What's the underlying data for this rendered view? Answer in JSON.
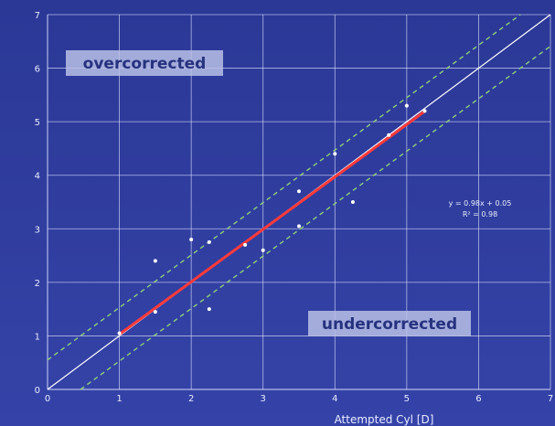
{
  "chart_data": {
    "type": "scatter",
    "title": "",
    "xlabel": "Attempted Cyl [D]",
    "ylabel": "",
    "xlim": [
      0,
      7
    ],
    "ylim": [
      0,
      7
    ],
    "grid": true,
    "x_ticks": [
      "0",
      "1",
      "2",
      "3",
      "4",
      "5",
      "6",
      "7"
    ],
    "y_ticks": [
      "0",
      "1",
      "2",
      "3",
      "4",
      "5",
      "6",
      "7"
    ],
    "points": [
      {
        "x": 1.0,
        "y": 1.05
      },
      {
        "x": 1.5,
        "y": 2.4
      },
      {
        "x": 1.5,
        "y": 1.45
      },
      {
        "x": 2.0,
        "y": 2.8
      },
      {
        "x": 2.25,
        "y": 2.75
      },
      {
        "x": 2.25,
        "y": 1.5
      },
      {
        "x": 2.75,
        "y": 2.7
      },
      {
        "x": 3.0,
        "y": 2.6
      },
      {
        "x": 3.5,
        "y": 3.7
      },
      {
        "x": 3.5,
        "y": 3.05
      },
      {
        "x": 4.0,
        "y": 4.4
      },
      {
        "x": 4.25,
        "y": 3.5
      },
      {
        "x": 4.75,
        "y": 4.75
      },
      {
        "x": 5.0,
        "y": 5.3
      },
      {
        "x": 5.25,
        "y": 5.2
      }
    ],
    "fit_line": {
      "slope": 0.98,
      "intercept": 0.05,
      "x_range": [
        1.0,
        5.25
      ]
    },
    "identity_line": true,
    "band_offset": 0.5,
    "annotations": {
      "overcorrected": "overcorrected",
      "undercorrected": "undercorrected",
      "equation": "y = 0.98x + 0.05",
      "r2": "R² = 0.98"
    },
    "colors": {
      "background": "#2d3a9a",
      "grid": "#dfe3ff",
      "fit_line": "#ff3a3a",
      "band": "#8fd07a",
      "identity": "#ffffff",
      "points": "#ffffff",
      "label_box": "#b9c0e6"
    }
  }
}
